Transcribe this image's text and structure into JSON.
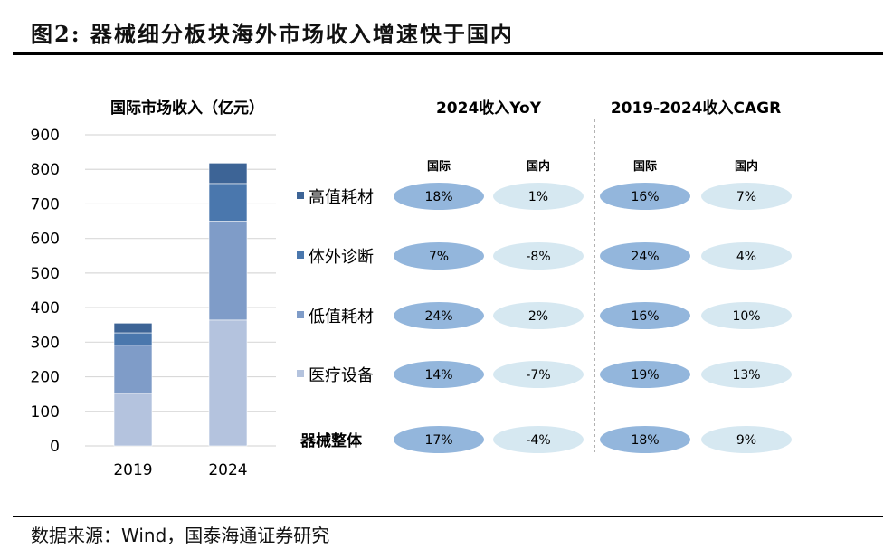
{
  "title": "图2:  器械细分板块海外市场收入增速快于国内",
  "source": "数据来源：Wind，国泰海通证券研究",
  "colors": {
    "医疗设备": "#b4c3de",
    "低值耗材": "#7f9cc8",
    "体外诊断": "#4a77ad",
    "高值耗材": "#3d6496",
    "intl_ellipse": "#93b6dc",
    "dom_ellipse": "#d6e8f1"
  },
  "chart_data": [
    {
      "type": "bar",
      "stacked": true,
      "title": "国际市场收入（亿元）",
      "categories": [
        "2019",
        "2024"
      ],
      "ylim": [
        0,
        900
      ],
      "yticks": [
        0,
        100,
        200,
        300,
        400,
        500,
        600,
        700,
        800,
        900
      ],
      "grid": true,
      "legend": "right",
      "series": [
        {
          "name": "医疗设备",
          "values": [
            152,
            364
          ]
        },
        {
          "name": "低值耗材",
          "values": [
            139,
            286
          ]
        },
        {
          "name": "体外诊断",
          "values": [
            36,
            109
          ]
        },
        {
          "name": "高值耗材",
          "values": [
            28,
            59
          ]
        }
      ]
    },
    {
      "type": "table",
      "rows": [
        "高值耗材",
        "体外诊断",
        "低值耗材",
        "医疗设备",
        "器械整体"
      ],
      "groups": [
        {
          "title": "2024收入YoY",
          "columns": [
            "国际",
            "国内"
          ],
          "values": [
            [
              "18%",
              "1%"
            ],
            [
              "7%",
              "-8%"
            ],
            [
              "24%",
              "2%"
            ],
            [
              "14%",
              "-7%"
            ],
            [
              "17%",
              "-4%"
            ]
          ]
        },
        {
          "title": "2019-2024收入CAGR",
          "columns": [
            "国际",
            "国内"
          ],
          "values": [
            [
              "16%",
              "7%"
            ],
            [
              "24%",
              "4%"
            ],
            [
              "16%",
              "10%"
            ],
            [
              "19%",
              "13%"
            ],
            [
              "18%",
              "9%"
            ]
          ]
        }
      ]
    }
  ]
}
